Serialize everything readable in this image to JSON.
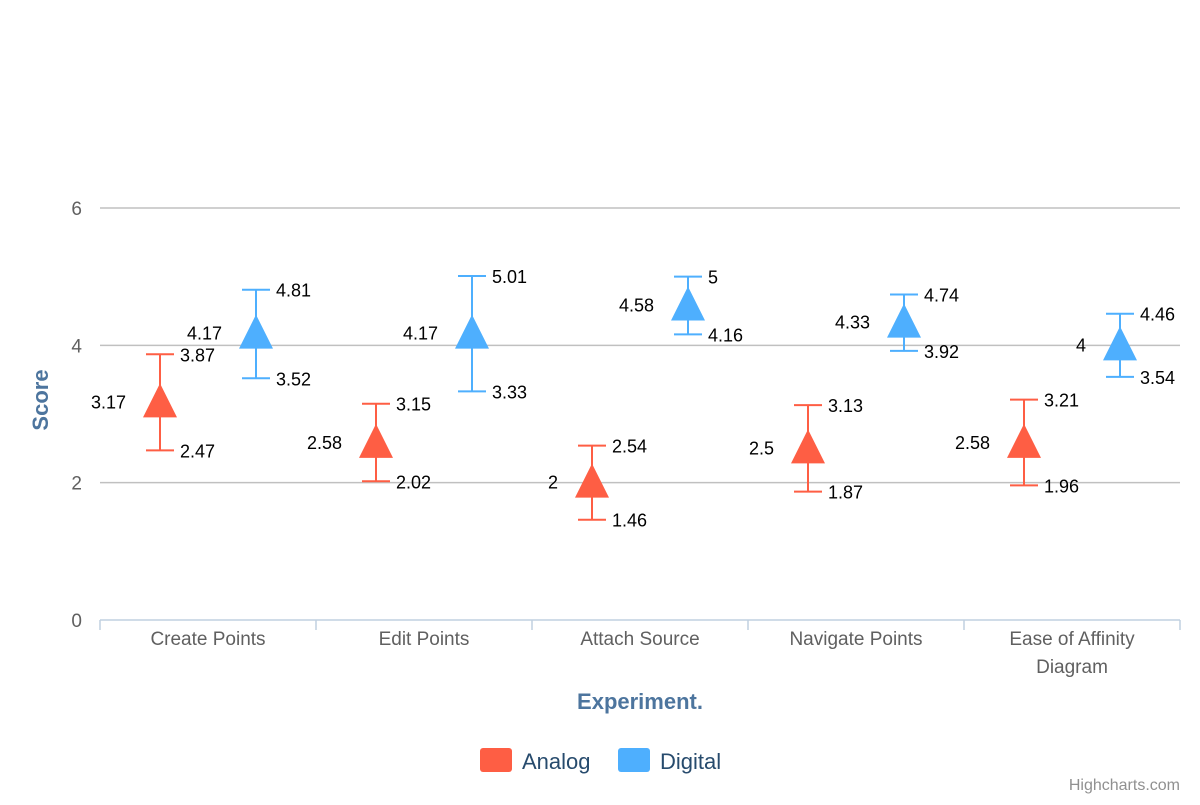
{
  "chart_data": {
    "type": "scatter",
    "title": "",
    "xlabel": "Experiment.",
    "ylabel": "Score",
    "categories": [
      "Create Points",
      "Edit Points",
      "Attach Source",
      "Navigate Points",
      "Ease of Affinity Diagram"
    ],
    "yticks": [
      "0",
      "2",
      "4",
      "6"
    ],
    "ylim": [
      0,
      6
    ],
    "grid": true,
    "legend": "bottom-center",
    "marker": "triangle",
    "series": [
      {
        "name": "Analog",
        "color": "#fe5e44",
        "values": [
          3.17,
          2.58,
          2,
          2.5,
          2.58
        ],
        "upper": [
          3.87,
          3.15,
          2.54,
          3.13,
          3.21
        ],
        "lower": [
          2.47,
          2.02,
          1.46,
          1.87,
          1.96
        ],
        "value_labels": [
          "3.17",
          "2.58",
          "2",
          "2.5",
          "2.58"
        ],
        "upper_labels": [
          "3.87",
          "3.15",
          "2.54",
          "3.13",
          "3.21"
        ],
        "lower_labels": [
          "2.47",
          "2.02",
          "1.46",
          "1.87",
          "1.96"
        ]
      },
      {
        "name": "Digital",
        "color": "#4eaffe",
        "values": [
          4.17,
          4.17,
          4.58,
          4.33,
          4
        ],
        "upper": [
          4.81,
          5.01,
          5,
          4.74,
          4.46
        ],
        "lower": [
          3.52,
          3.33,
          4.16,
          3.92,
          3.54
        ],
        "value_labels": [
          "4.17",
          "4.17",
          "4.58",
          "4.33",
          "4"
        ],
        "upper_labels": [
          "4.81",
          "5.01",
          "5",
          "4.74",
          "4.46"
        ],
        "lower_labels": [
          "3.52",
          "3.33",
          "4.16",
          "3.92",
          "3.54"
        ]
      }
    ]
  },
  "credits": "Highcharts.com"
}
